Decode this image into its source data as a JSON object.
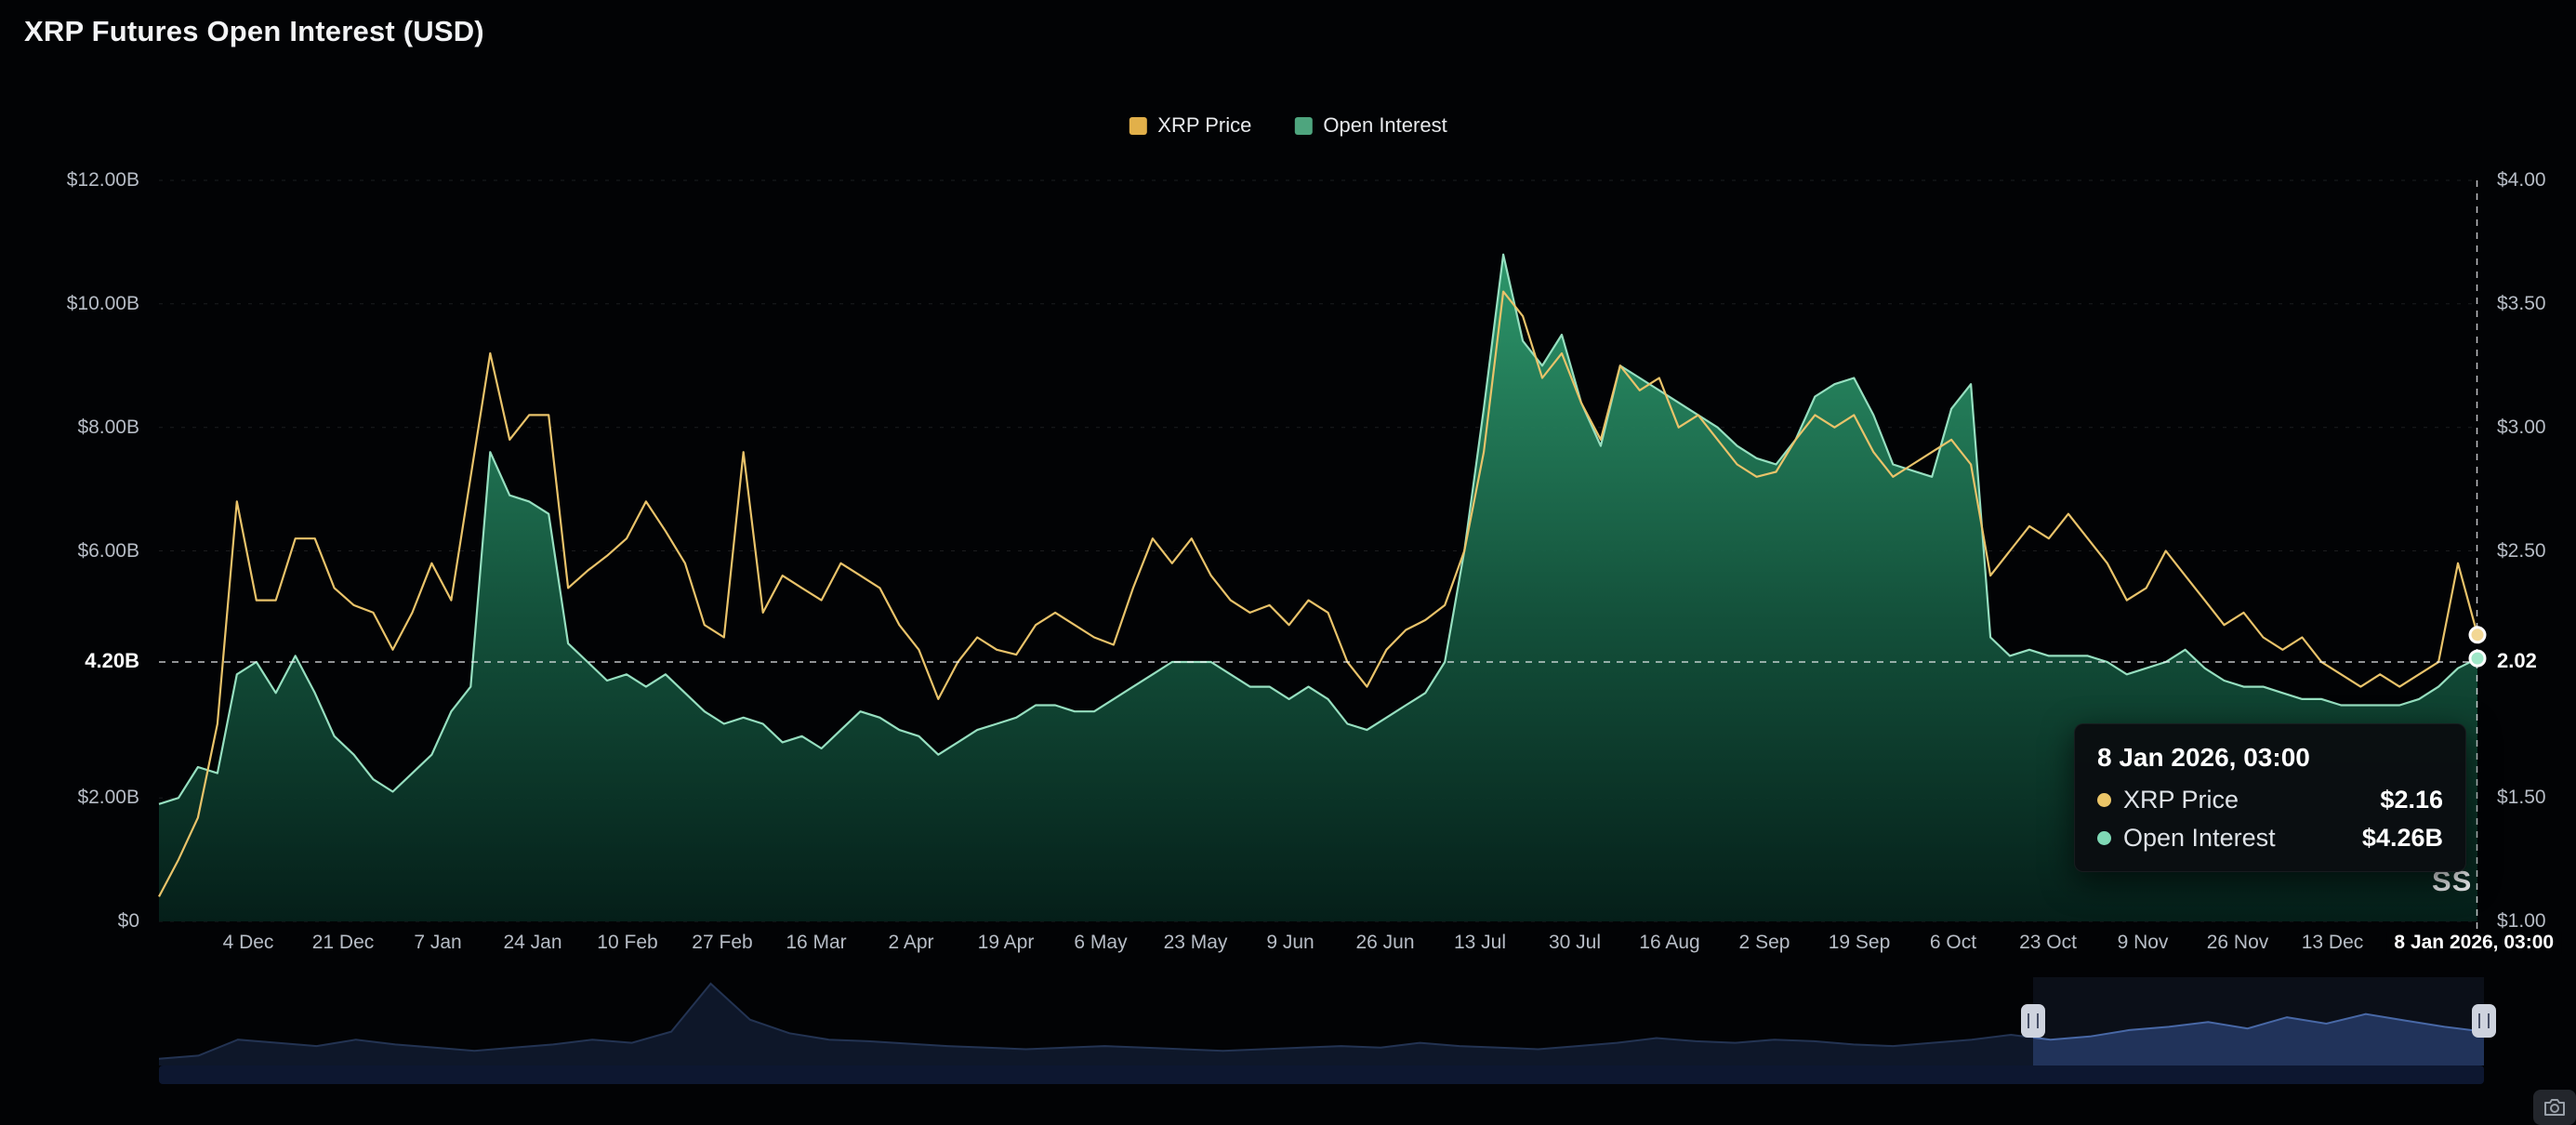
{
  "title": "XRP Futures Open Interest (USD)",
  "legend": [
    {
      "label": "XRP Price",
      "color": "#e2b04a"
    },
    {
      "label": "Open Interest",
      "color": "#4ea57e"
    }
  ],
  "colors": {
    "background": "#020305",
    "price_line": "#e9c36a",
    "oi_line": "#96dfc0",
    "oi_fill_top": "#2f9e70",
    "oi_fill_bottom": "#05201a",
    "grid": "rgba(255,255,255,0.10)",
    "crosshair": "rgba(240,242,245,0.8)",
    "axis_text": "#b7bdc6",
    "nav_fill": "#1a2a4d",
    "nav_line": "#44639f"
  },
  "left_axis": {
    "labels": [
      {
        "text": "$12.00B",
        "value": 12
      },
      {
        "text": "$10.00B",
        "value": 10
      },
      {
        "text": "$8.00B",
        "value": 8
      },
      {
        "text": "$6.00B",
        "value": 6
      },
      {
        "text": "$2.00B",
        "value": 2
      },
      {
        "text": "$0",
        "value": 0
      }
    ],
    "current": "4.20B",
    "current_value": 4.2
  },
  "right_axis": {
    "labels": [
      {
        "text": "$4.00",
        "value": 4
      },
      {
        "text": "$3.50",
        "value": 3.5
      },
      {
        "text": "$3.00",
        "value": 3
      },
      {
        "text": "$2.50",
        "value": 2.5
      },
      {
        "text": "$1.50",
        "value": 1.5
      },
      {
        "text": "$1.00",
        "value": 1
      }
    ],
    "current": "2.02",
    "current_value": 2.02
  },
  "x_axis": {
    "total_days": 416,
    "ticks": [
      {
        "label": "4 Dec",
        "day": 16
      },
      {
        "label": "21 Dec",
        "day": 33
      },
      {
        "label": "7 Jan",
        "day": 50
      },
      {
        "label": "24 Jan",
        "day": 67
      },
      {
        "label": "10 Feb",
        "day": 84
      },
      {
        "label": "27 Feb",
        "day": 101
      },
      {
        "label": "16 Mar",
        "day": 118
      },
      {
        "label": "2 Apr",
        "day": 135
      },
      {
        "label": "19 Apr",
        "day": 152
      },
      {
        "label": "6 May",
        "day": 169
      },
      {
        "label": "23 May",
        "day": 186
      },
      {
        "label": "9 Jun",
        "day": 203
      },
      {
        "label": "26 Jun",
        "day": 220
      },
      {
        "label": "13 Jul",
        "day": 237
      },
      {
        "label": "30 Jul",
        "day": 254
      },
      {
        "label": "16 Aug",
        "day": 271
      },
      {
        "label": "2 Sep",
        "day": 288
      },
      {
        "label": "19 Sep",
        "day": 305
      },
      {
        "label": "6 Oct",
        "day": 322
      },
      {
        "label": "23 Oct",
        "day": 339
      },
      {
        "label": "9 Nov",
        "day": 356
      },
      {
        "label": "26 Nov",
        "day": 373
      },
      {
        "label": "13 Dec",
        "day": 390
      }
    ],
    "end": {
      "label": "8 Jan 2026, 03:00",
      "day": 416
    }
  },
  "tooltip": {
    "title": "8 Jan 2026, 03:00",
    "rows": [
      {
        "label": "XRP Price",
        "value": "$2.16",
        "color": "#ebc568"
      },
      {
        "label": "Open Interest",
        "value": "$4.26B",
        "color": "#7fd8b5"
      }
    ]
  },
  "watermark": "SS",
  "icons": {
    "corner_button": "camera-icon",
    "navigator_handles": "drag-grip-icon"
  },
  "chart_data": {
    "type": "area",
    "title": "XRP Futures Open Interest (USD)",
    "x_start": "18 Nov 2024",
    "x_end": "8 Jan 2026, 03:00",
    "total_days": 416,
    "sampling": "120 uniform samples across x range (~3.5 days apart), values estimated from pixels",
    "x_tick_labels": [
      "4 Dec",
      "21 Dec",
      "7 Jan",
      "24 Jan",
      "10 Feb",
      "27 Feb",
      "16 Mar",
      "2 Apr",
      "19 Apr",
      "6 May",
      "23 May",
      "9 Jun",
      "26 Jun",
      "13 Jul",
      "30 Jul",
      "16 Aug",
      "2 Sep",
      "19 Sep",
      "6 Oct",
      "23 Oct",
      "9 Nov",
      "26 Nov",
      "13 Dec",
      "8 Jan 2026, 03:00"
    ],
    "left_ylim": [
      0,
      12
    ],
    "right_ylim": [
      1,
      4
    ],
    "grid": "dashed horizontal",
    "legend_position": "top-center",
    "series": [
      {
        "name": "Open Interest",
        "type": "area",
        "axis": "left",
        "unit": "USD billions",
        "color": "#96dfc0",
        "values": [
          1.9,
          2.0,
          2.5,
          2.4,
          4.0,
          4.2,
          3.7,
          4.3,
          3.7,
          3.0,
          2.7,
          2.3,
          2.1,
          2.4,
          2.7,
          3.4,
          3.8,
          7.6,
          6.9,
          6.8,
          6.6,
          4.5,
          4.2,
          3.9,
          4.0,
          3.8,
          4.0,
          3.7,
          3.4,
          3.2,
          3.3,
          3.2,
          2.9,
          3.0,
          2.8,
          3.1,
          3.4,
          3.3,
          3.1,
          3.0,
          2.7,
          2.9,
          3.1,
          3.2,
          3.3,
          3.5,
          3.5,
          3.4,
          3.4,
          3.6,
          3.8,
          4.0,
          4.2,
          4.2,
          4.2,
          4.0,
          3.8,
          3.8,
          3.6,
          3.8,
          3.6,
          3.2,
          3.1,
          3.3,
          3.5,
          3.7,
          4.2,
          6.0,
          8.3,
          10.8,
          9.4,
          9.0,
          9.5,
          8.4,
          7.7,
          9.0,
          8.8,
          8.6,
          8.4,
          8.2,
          8.0,
          7.7,
          7.5,
          7.4,
          7.8,
          8.5,
          8.7,
          8.8,
          8.2,
          7.4,
          7.3,
          7.2,
          8.3,
          8.7,
          4.6,
          4.3,
          4.4,
          4.3,
          4.3,
          4.3,
          4.2,
          4.0,
          4.1,
          4.2,
          4.4,
          4.1,
          3.9,
          3.8,
          3.8,
          3.7,
          3.6,
          3.6,
          3.5,
          3.5,
          3.5,
          3.5,
          3.6,
          3.8,
          4.1,
          4.26
        ]
      },
      {
        "name": "XRP Price",
        "type": "line",
        "axis": "right",
        "unit": "USD",
        "color": "#e9c36a",
        "values": [
          1.1,
          1.25,
          1.42,
          1.8,
          2.7,
          2.3,
          2.3,
          2.55,
          2.55,
          2.35,
          2.28,
          2.25,
          2.1,
          2.25,
          2.45,
          2.3,
          2.8,
          3.3,
          2.95,
          3.05,
          3.05,
          2.35,
          2.42,
          2.48,
          2.55,
          2.7,
          2.58,
          2.45,
          2.2,
          2.15,
          2.9,
          2.25,
          2.4,
          2.35,
          2.3,
          2.45,
          2.4,
          2.35,
          2.2,
          2.1,
          1.9,
          2.05,
          2.15,
          2.1,
          2.08,
          2.2,
          2.25,
          2.2,
          2.15,
          2.12,
          2.35,
          2.55,
          2.45,
          2.55,
          2.4,
          2.3,
          2.25,
          2.28,
          2.2,
          2.3,
          2.25,
          2.05,
          1.95,
          2.1,
          2.18,
          2.22,
          2.28,
          2.5,
          2.9,
          3.55,
          3.45,
          3.2,
          3.3,
          3.1,
          2.95,
          3.25,
          3.15,
          3.2,
          3.0,
          3.05,
          2.95,
          2.85,
          2.8,
          2.82,
          2.95,
          3.05,
          3.0,
          3.05,
          2.9,
          2.8,
          2.85,
          2.9,
          2.95,
          2.85,
          2.4,
          2.5,
          2.6,
          2.55,
          2.65,
          2.55,
          2.45,
          2.3,
          2.35,
          2.5,
          2.4,
          2.3,
          2.2,
          2.25,
          2.15,
          2.1,
          2.15,
          2.05,
          2.0,
          1.95,
          2.0,
          1.95,
          2.0,
          2.05,
          2.45,
          2.16
        ]
      }
    ],
    "current_values": {
      "open_interest": "4.20B",
      "xrp_price": "2.02"
    },
    "hover_point": {
      "time": "8 Jan 2026, 03:00",
      "xrp_price": "$2.16",
      "open_interest": "$4.26B"
    },
    "navigator": {
      "selected_from_frac": 0.806,
      "selected_to_frac": 1.0,
      "values": [
        0.06,
        0.1,
        0.3,
        0.26,
        0.22,
        0.3,
        0.24,
        0.2,
        0.16,
        0.2,
        0.24,
        0.3,
        0.26,
        0.4,
        1.0,
        0.55,
        0.38,
        0.3,
        0.28,
        0.25,
        0.22,
        0.2,
        0.18,
        0.2,
        0.22,
        0.2,
        0.18,
        0.16,
        0.18,
        0.2,
        0.22,
        0.2,
        0.26,
        0.22,
        0.2,
        0.18,
        0.22,
        0.26,
        0.32,
        0.28,
        0.26,
        0.3,
        0.28,
        0.24,
        0.22,
        0.26,
        0.3,
        0.36,
        0.3,
        0.34,
        0.42,
        0.46,
        0.52,
        0.44,
        0.58,
        0.5,
        0.62,
        0.54,
        0.46,
        0.4
      ]
    }
  }
}
